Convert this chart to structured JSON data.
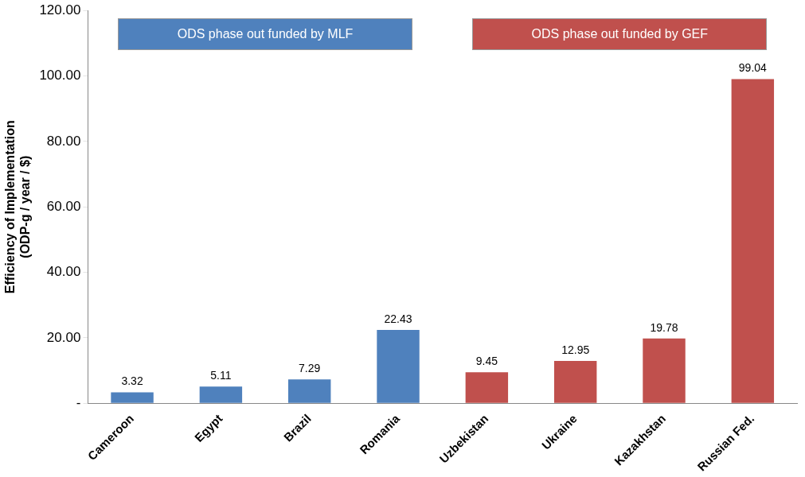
{
  "chart_data": {
    "type": "bar",
    "ylabel": "Efficiency of Implementation\n(ODP-g / year / $)",
    "categories": [
      "Cameroon",
      "Egypt",
      "Brazil",
      "Romania",
      "Uzbekistan",
      "Ukraine",
      "Kazakhstan",
      "Russian Fed."
    ],
    "series": [
      {
        "name": "ODS phase out funded by MLF",
        "color": "#4f81bd",
        "values": [
          3.32,
          5.11,
          7.29,
          22.43,
          null,
          null,
          null,
          null
        ]
      },
      {
        "name": "ODS phase out funded by GEF",
        "color": "#c0504d",
        "values": [
          null,
          null,
          null,
          null,
          9.45,
          12.95,
          19.78,
          99.04
        ]
      }
    ],
    "ylim": [
      0,
      120
    ],
    "yticks": [
      {
        "value": 0,
        "label": "-"
      },
      {
        "value": 20,
        "label": "20.00"
      },
      {
        "value": 40,
        "label": "40.00"
      },
      {
        "value": 60,
        "label": "60.00"
      },
      {
        "value": 80,
        "label": "80.00"
      },
      {
        "value": 100,
        "label": "100.00"
      },
      {
        "value": 120,
        "label": "120.00"
      }
    ],
    "grid": false,
    "legend": "top",
    "data_labels": true
  }
}
